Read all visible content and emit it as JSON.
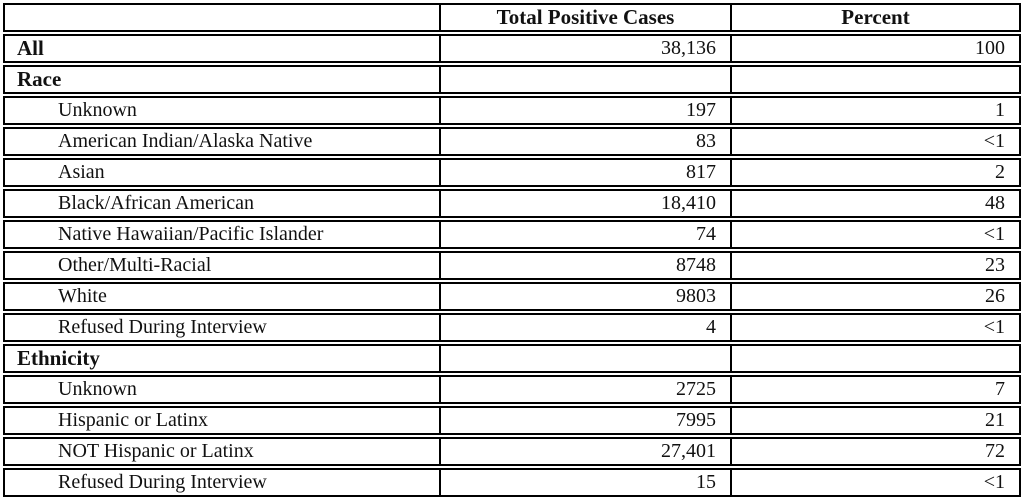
{
  "chart_data": {
    "type": "table",
    "title": "",
    "columns": [
      "",
      "Total Positive Cases",
      "Percent"
    ],
    "rows": [
      {
        "label": "All",
        "section": true,
        "cases": "38,136",
        "percent": "100"
      },
      {
        "label": "Race",
        "section": true,
        "cases": "",
        "percent": ""
      },
      {
        "label": "Unknown",
        "section": false,
        "cases": "197",
        "percent": "1"
      },
      {
        "label": "American Indian/Alaska Native",
        "section": false,
        "cases": "83",
        "percent": "<1"
      },
      {
        "label": "Asian",
        "section": false,
        "cases": "817",
        "percent": "2"
      },
      {
        "label": "Black/African American",
        "section": false,
        "cases": "18,410",
        "percent": "48"
      },
      {
        "label": "Native Hawaiian/Pacific Islander",
        "section": false,
        "cases": "74",
        "percent": "<1"
      },
      {
        "label": "Other/Multi-Racial",
        "section": false,
        "cases": "8748",
        "percent": "23"
      },
      {
        "label": "White",
        "section": false,
        "cases": "9803",
        "percent": "26"
      },
      {
        "label": "Refused During Interview",
        "section": false,
        "cases": "4",
        "percent": "<1"
      },
      {
        "label": "Ethnicity",
        "section": true,
        "cases": "",
        "percent": ""
      },
      {
        "label": "Unknown",
        "section": false,
        "cases": "2725",
        "percent": "7"
      },
      {
        "label": "Hispanic or Latinx",
        "section": false,
        "cases": "7995",
        "percent": "21"
      },
      {
        "label": "NOT Hispanic or Latinx",
        "section": false,
        "cases": "27,401",
        "percent": "72"
      },
      {
        "label": "Refused During Interview",
        "section": false,
        "cases": "15",
        "percent": "<1"
      }
    ],
    "colors": {
      "border": "#000000",
      "text": "#111111",
      "background": "#ffffff"
    }
  }
}
